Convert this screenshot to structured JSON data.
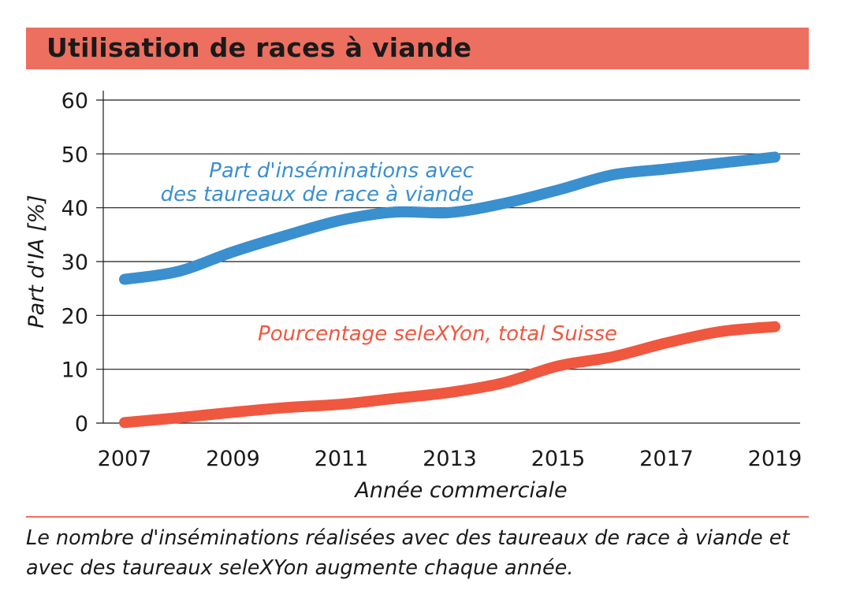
{
  "colors": {
    "banner": "#ed6f5f",
    "series_meat": "#3a8fcf",
    "series_selexyon": "#f0573f",
    "grid": "#1a1a1a"
  },
  "caption": "Le nombre d'inséminations réalisées avec des taureaux de race à viande et avec des taureaux seleXYon augmente chaque année.",
  "chart_data": {
    "type": "line",
    "title": "Utilisation de races à viande",
    "xlabel": "Année commerciale",
    "ylabel": "Part d'IA [%]",
    "ylim": [
      0,
      60
    ],
    "xlim": [
      2007,
      2019
    ],
    "grid": true,
    "x_ticks": [
      2007,
      2009,
      2011,
      2013,
      2015,
      2017,
      2019
    ],
    "y_ticks": [
      0,
      10,
      20,
      30,
      40,
      50,
      60
    ],
    "series": [
      {
        "name": "Part d'inséminations avec des taureaux de race à viande",
        "label_lines": [
          "Part d'inséminations avec",
          "des taureaux de race à viande"
        ],
        "x": [
          2007,
          2008,
          2009,
          2010,
          2011,
          2012,
          2013,
          2014,
          2015,
          2016,
          2017,
          2018,
          2019
        ],
        "values": [
          26.7,
          28.2,
          31.8,
          34.9,
          37.7,
          39.2,
          39.1,
          40.8,
          43.3,
          46.1,
          47.2,
          48.3,
          49.4
        ]
      },
      {
        "name": "Pourcentage seleXYon, total Suisse",
        "label_lines": [
          "Pourcentage seleXYon, total Suisse"
        ],
        "x": [
          2007,
          2008,
          2009,
          2010,
          2011,
          2012,
          2013,
          2014,
          2015,
          2016,
          2017,
          2018,
          2019
        ],
        "values": [
          0.1,
          1.0,
          2.0,
          2.9,
          3.5,
          4.6,
          5.7,
          7.5,
          10.6,
          12.3,
          14.9,
          17.0,
          17.9
        ]
      }
    ]
  }
}
